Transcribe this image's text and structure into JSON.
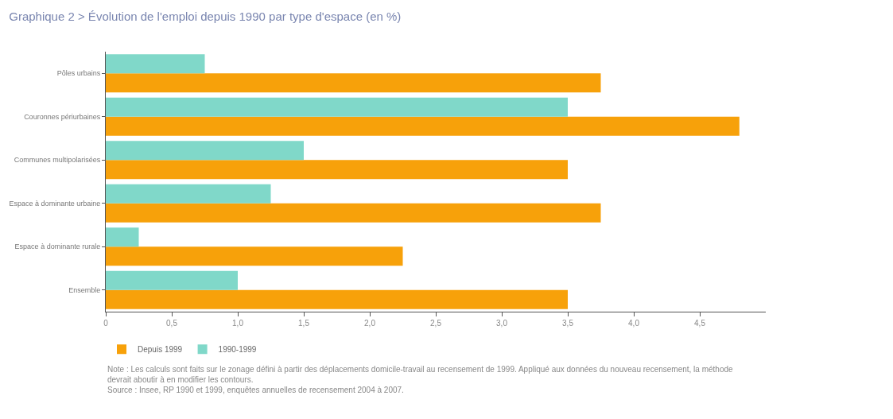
{
  "chart_data": {
    "type": "bar",
    "orientation": "horizontal",
    "title": "Graphique 2 > Évolution de l'emploi depuis 1990 par type d'espace (en %)",
    "categories": [
      "Pôles urbains",
      "Couronnes périurbaines",
      "Communes multipolarisées",
      "Espace à dominante urbaine",
      "Espace à dominante rurale",
      "Ensemble"
    ],
    "series": [
      {
        "name": "Depuis 1999",
        "color": "#f7a10a",
        "values": [
          3.75,
          4.8,
          3.5,
          3.75,
          2.25,
          3.5
        ]
      },
      {
        "name": "1990-1999",
        "color": "#80d8c9",
        "values": [
          0.75,
          3.5,
          1.5,
          1.25,
          0.25,
          1.0
        ]
      }
    ],
    "xlim": [
      0,
      5
    ],
    "xticks": [
      0,
      {
        "value": 0.5,
        "label": "0,5"
      },
      {
        "value": 1,
        "label": "1,0"
      },
      {
        "value": 1.5,
        "label": "1,5"
      },
      {
        "value": 2,
        "label": "2,0"
      },
      {
        "value": 2.5,
        "label": "2,5"
      },
      {
        "value": 3,
        "label": "3,0"
      },
      {
        "value": 3.5,
        "label": "3,5"
      },
      {
        "value": 4,
        "label": "4,0"
      },
      {
        "value": 4.5,
        "label": "4,5"
      }
    ],
    "legend": "bottom left",
    "annotations": [
      "Note : Les calculs sont faits sur le zonage défini à partir des déplacements domicile-travail au recensement de 1999. Appliqué aux données du nouveau recensement, la méthode devrait aboutir à en modifier les contours.",
      "Source : Insee, RP 1990 et 1999, enquêtes annuelles de recensement 2004 à 2007."
    ]
  }
}
